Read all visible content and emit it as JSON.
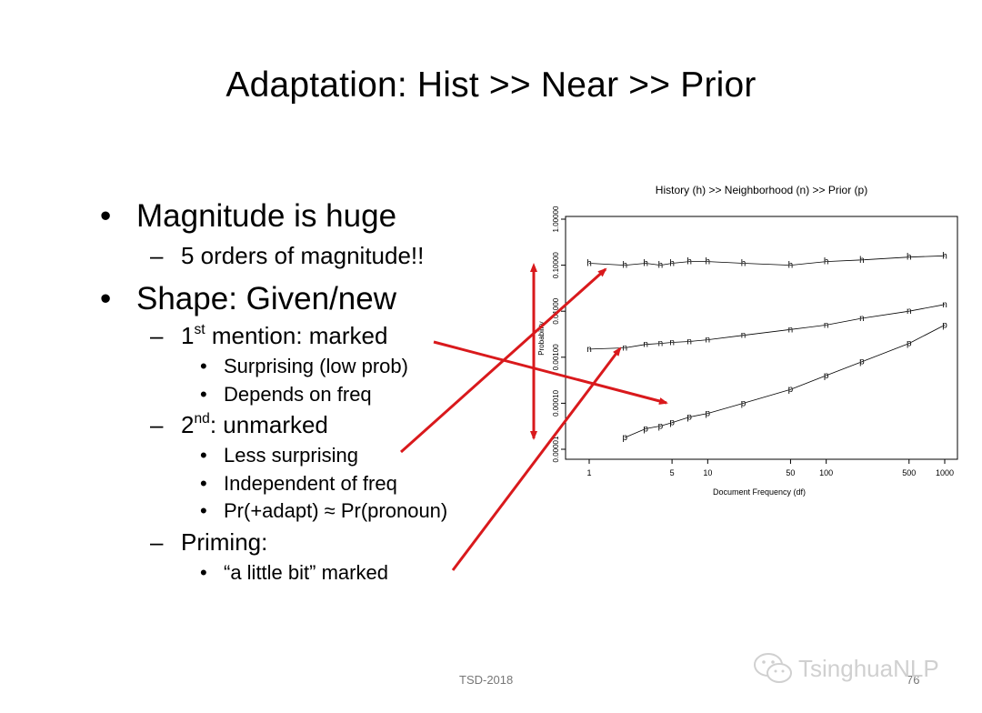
{
  "slide": {
    "title": "Adaptation: Hist >> Near >> Prior",
    "footer": "TSD-2018",
    "page_number": "76",
    "watermark": "TsinghuaNLP",
    "bullets": {
      "b1": "Magnitude is huge",
      "b1_1": "5 orders of magnitude!!",
      "b2": "Shape: Given/new",
      "b2_1_pre": "1",
      "b2_1_sup": "st",
      "b2_1_post": " mention: marked",
      "b2_1_1": "Surprising (low prob)",
      "b2_1_2": "Depends on freq",
      "b2_2_pre": "2",
      "b2_2_sup": "nd",
      "b2_2_post": ": unmarked",
      "b2_2_1": "Less surprising",
      "b2_2_2": "Independent of freq",
      "b2_2_3": "Pr(+adapt) ≈ Pr(pronoun)",
      "b2_3": "Priming:",
      "b2_3_1": "“a little bit” marked"
    },
    "arrow_color": "#d9191c"
  },
  "chart_data": {
    "type": "scatter",
    "title": "History (h) >> Neighborhood (n) >> Prior (p)",
    "xlabel": "Document Frequency (df)",
    "ylabel": "Probability",
    "x_scale": "log",
    "y_scale": "log",
    "xlim": [
      1,
      1000
    ],
    "ylim": [
      1e-05,
      1
    ],
    "x_ticks": [
      1,
      5,
      10,
      50,
      100,
      500,
      1000
    ],
    "x_tick_labels": [
      "1",
      "5",
      "10",
      "50",
      "100",
      "500",
      "1000"
    ],
    "y_ticks": [
      1e-05,
      0.0001,
      0.001,
      0.01,
      0.1,
      1
    ],
    "y_tick_labels": [
      "0.00001",
      "0.00010",
      "0.00100",
      "0.01000",
      "0.10000",
      "1.00000"
    ],
    "series": [
      {
        "name": "h",
        "marker": "h",
        "x": [
          1,
          2,
          3,
          4,
          5,
          7,
          10,
          20,
          50,
          100,
          200,
          500,
          1000
        ],
        "y": [
          0.11,
          0.1,
          0.11,
          0.1,
          0.11,
          0.12,
          0.12,
          0.11,
          0.1,
          0.12,
          0.13,
          0.15,
          0.16
        ]
      },
      {
        "name": "n",
        "marker": "n",
        "x": [
          1,
          2,
          3,
          4,
          5,
          7,
          10,
          20,
          50,
          100,
          200,
          500,
          1000
        ],
        "y": [
          0.0015,
          0.0016,
          0.0019,
          0.002,
          0.0021,
          0.0022,
          0.0024,
          0.003,
          0.004,
          0.005,
          0.007,
          0.01,
          0.014
        ]
      },
      {
        "name": "p",
        "marker": "p",
        "x": [
          2,
          3,
          4,
          5,
          7,
          10,
          20,
          50,
          100,
          200,
          500,
          1000
        ],
        "y": [
          1.8e-05,
          2.8e-05,
          3.2e-05,
          3.8e-05,
          5e-05,
          6e-05,
          0.0001,
          0.0002,
          0.0004,
          0.0008,
          0.002,
          0.005
        ]
      }
    ]
  }
}
